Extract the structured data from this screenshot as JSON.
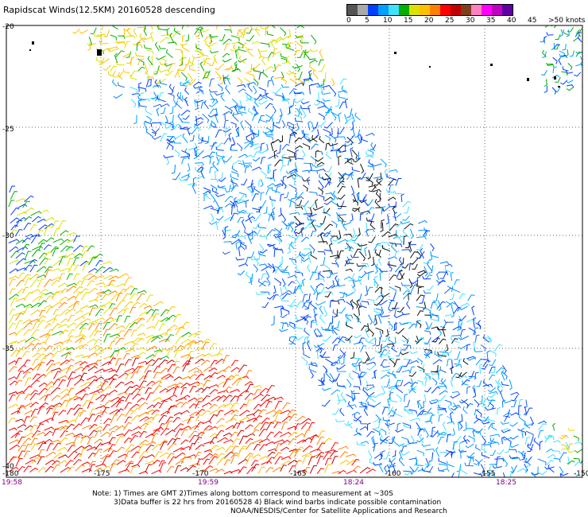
{
  "title": "Rapidscat Winds(12.5KM) 20160528 descending",
  "legend": {
    "colors": [
      "#555555",
      "#aaaaaa",
      "#0040ff",
      "#00a0ff",
      "#40e0ff",
      "#00b000",
      "#e0e000",
      "#ffc000",
      "#ff8000",
      "#ff0000",
      "#c00000",
      "#804020",
      "#ff80c0",
      "#ff00ff",
      "#c000c0",
      "#6000a0"
    ],
    "labels": [
      "0",
      "5",
      "10",
      "15",
      "20",
      "25",
      "30",
      "35",
      "40",
      "45",
      ">50 knots"
    ]
  },
  "axes": {
    "lon_ticks": [
      "-175",
      "-170",
      "-165",
      "-160",
      "-155",
      "-150"
    ],
    "lat_ticks": [
      "-20",
      "-25",
      "-30",
      "-35",
      "-40"
    ],
    "corner_label": "-180",
    "times": [
      "19:58",
      "19:59",
      "18:24",
      "18:25"
    ]
  },
  "swaths": [
    {
      "name": "eastern-swath",
      "pass_time": "18:24"
    },
    {
      "name": "western-swath",
      "pass_time": "19:58"
    }
  ],
  "notes": {
    "line1": "Note: 1) Times are GMT 2)Times along bottom correspond to measurement at ~30S",
    "line2": "3)Data buffer is 22 hrs from 20160528 4) Black wind barbs indicate possible contamination",
    "line3": "NOAA/NESDIS/Center for Satellite Applications and Research"
  }
}
